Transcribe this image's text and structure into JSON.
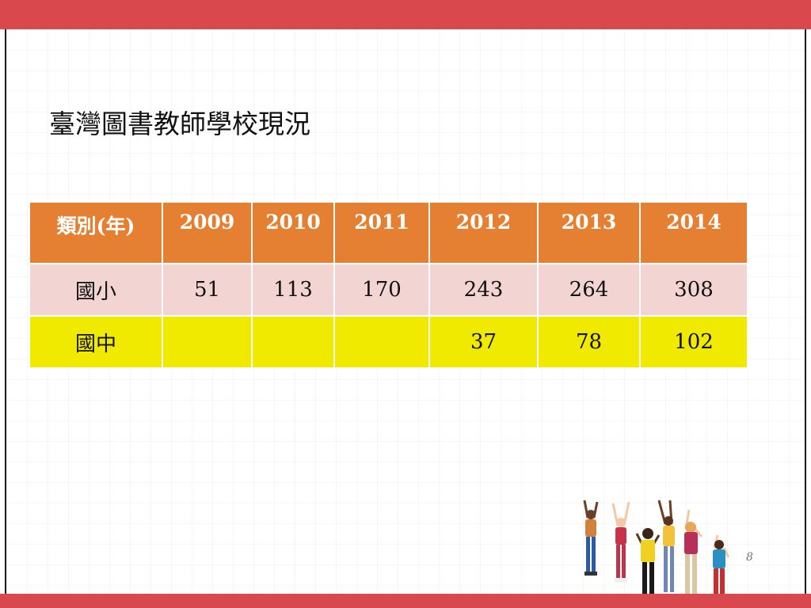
{
  "slide": {
    "title": "臺灣圖書教師學校現況",
    "page_number": "8"
  },
  "table": {
    "headers": [
      "類別(年)",
      "2009",
      "2010",
      "2011",
      "2012",
      "2013",
      "2014"
    ],
    "rows": [
      {
        "category": "國小",
        "values": [
          "51",
          "113",
          "170",
          "243",
          "264",
          "308"
        ]
      },
      {
        "category": "國中",
        "values": [
          "",
          "",
          "",
          "37",
          "78",
          "102"
        ]
      }
    ]
  },
  "colors": {
    "accent_bar": "#d9484c",
    "header_bg": "#e57f31",
    "row1_bg": "#f2d5d2",
    "row2_bg": "#f0e900"
  },
  "image": {
    "subject": "jumping-children-photo"
  }
}
